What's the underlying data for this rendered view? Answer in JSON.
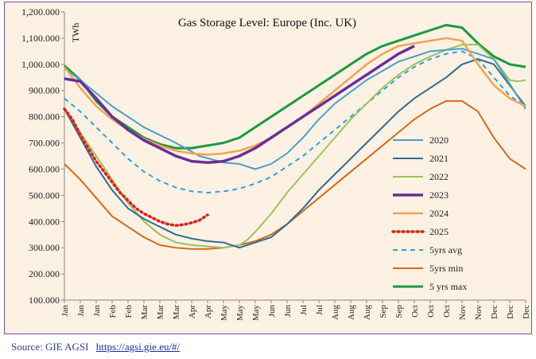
{
  "source": {
    "label": "Source: GIE AGSI",
    "link_text": "https://agsi.gie.eu/#/"
  },
  "chart_data": {
    "type": "line",
    "title": "Gas Storage Level: Europe (Inc. UK)",
    "ylabel": "TWh",
    "xlabel": "",
    "ylim": [
      100,
      1200
    ],
    "yticks": [
      "100.000",
      "200.000",
      "300.000",
      "400.000",
      "500.000",
      "600.000",
      "700.000",
      "800.000",
      "900.000",
      "1,000.000",
      "1,100.000",
      "1,200.000"
    ],
    "xticks": [
      "Jan",
      "Jan",
      "Jan",
      "Feb",
      "Feb",
      "Mar",
      "Mar",
      "Mar",
      "Apr",
      "Apr",
      "May",
      "May",
      "May",
      "Jun",
      "Jun",
      "Jul",
      "Jul",
      "Aug",
      "Aug",
      "Aug",
      "Sep",
      "Sep",
      "Oct",
      "Oct",
      "Oct",
      "Nov",
      "Nov",
      "Dec",
      "Dec",
      "Dec"
    ],
    "grid": false,
    "legend": "right",
    "series": [
      {
        "name": "2020",
        "color": "#4a9fc8",
        "dash": "",
        "width": 2,
        "x": [
          0,
          1,
          3,
          5,
          7,
          8.5,
          10,
          11,
          12,
          13,
          13.5,
          14,
          15,
          16,
          17,
          19,
          21,
          23,
          25,
          27,
          29
        ],
        "y": [
          985,
          940,
          840,
          760,
          700,
          650,
          625,
          620,
          600,
          620,
          640,
          660,
          720,
          790,
          850,
          940,
          1010,
          1050,
          1060,
          1020,
          830
        ]
      },
      {
        "name": "2021",
        "color": "#2e6b8f",
        "dash": "",
        "width": 2,
        "x": [
          0,
          1,
          2,
          3,
          4,
          5,
          6,
          7,
          8,
          9,
          10,
          11,
          11.5,
          12,
          13,
          14,
          15,
          16,
          17,
          18,
          19,
          20,
          21,
          22,
          23,
          24,
          25,
          26,
          27,
          28,
          29
        ],
        "y": [
          830,
          720,
          610,
          520,
          450,
          410,
          380,
          350,
          335,
          325,
          320,
          300,
          310,
          320,
          340,
          390,
          450,
          520,
          580,
          640,
          700,
          760,
          820,
          870,
          910,
          950,
          1000,
          1020,
          1000,
          920,
          840
        ]
      },
      {
        "name": "2022",
        "color": "#9ac25a",
        "dash": "",
        "width": 2,
        "x": [
          0,
          1,
          2,
          3,
          4,
          5,
          6,
          7,
          8,
          9,
          10,
          11,
          11.5,
          12,
          13,
          14,
          15,
          16,
          17,
          18,
          19,
          20,
          21,
          22,
          23,
          24,
          25,
          26,
          27,
          27.5,
          28,
          28.5,
          29
        ],
        "y": [
          830,
          740,
          650,
          560,
          470,
          400,
          350,
          320,
          310,
          305,
          300,
          310,
          330,
          360,
          430,
          510,
          580,
          650,
          720,
          790,
          850,
          910,
          960,
          1000,
          1030,
          1055,
          1075,
          1075,
          1020,
          980,
          940,
          935,
          940
        ]
      },
      {
        "name": "2023",
        "color": "#6a2f9a",
        "dash": "",
        "width": 3.5,
        "x": [
          0,
          1,
          2,
          3,
          4,
          5,
          6,
          7,
          8,
          9,
          10,
          11,
          12,
          13,
          14,
          15,
          16,
          17,
          18,
          19,
          20,
          21,
          22
        ],
        "y": [
          945,
          935,
          870,
          800,
          750,
          710,
          680,
          650,
          630,
          625,
          630,
          650,
          680,
          720,
          760,
          800,
          840,
          880,
          920,
          960,
          1000,
          1040,
          1070
        ]
      },
      {
        "name": "2024",
        "color": "#f4a34e",
        "dash": "",
        "width": 2.5,
        "x": [
          0,
          1,
          2,
          3,
          4,
          5,
          6,
          7,
          8,
          9,
          10,
          11,
          12,
          13,
          14,
          15,
          16,
          17,
          18,
          19,
          20,
          21,
          22,
          23,
          24,
          25,
          26,
          27,
          28,
          29
        ],
        "y": [
          990,
          910,
          840,
          790,
          750,
          715,
          690,
          670,
          660,
          655,
          660,
          670,
          690,
          720,
          760,
          800,
          850,
          900,
          950,
          1000,
          1040,
          1070,
          1080,
          1090,
          1100,
          1090,
          1000,
          920,
          870,
          840
        ]
      },
      {
        "name": "2025",
        "color": "#d8231a",
        "dash": "2,4",
        "width": 3.5,
        "x": [
          0,
          0.5,
          1,
          1.5,
          2,
          2.5,
          3,
          3.5,
          4,
          4.5,
          5,
          5.5,
          6,
          6.5,
          7,
          7.5,
          8,
          8.5,
          9
        ],
        "y": [
          830,
          790,
          730,
          680,
          630,
          590,
          550,
          510,
          480,
          450,
          430,
          415,
          400,
          390,
          385,
          388,
          395,
          405,
          425
        ]
      },
      {
        "name": "5yrs avg",
        "color": "#2f9fe0",
        "dash": "6,5",
        "width": 2,
        "x": [
          0,
          1,
          2,
          3,
          4,
          5,
          6,
          7,
          8,
          9,
          10,
          11,
          12,
          13,
          14,
          15,
          16,
          17,
          18,
          19,
          20,
          21,
          22,
          23,
          24,
          25,
          26,
          27,
          28,
          29
        ],
        "y": [
          870,
          820,
          760,
          700,
          640,
          590,
          555,
          530,
          515,
          510,
          515,
          525,
          545,
          570,
          610,
          650,
          700,
          750,
          800,
          850,
          900,
          950,
          990,
          1020,
          1040,
          1050,
          1020,
          950,
          880,
          840
        ]
      },
      {
        "name": "5yrs min",
        "color": "#d4691c",
        "dash": "",
        "width": 2,
        "x": [
          0,
          1,
          2,
          3,
          4,
          5,
          6,
          7,
          8,
          9,
          10,
          11,
          12,
          13,
          14,
          15,
          16,
          17,
          18,
          19,
          20,
          21,
          22,
          23,
          24,
          25,
          26,
          27,
          28,
          29
        ],
        "y": [
          620,
          560,
          490,
          420,
          380,
          340,
          310,
          300,
          295,
          295,
          300,
          310,
          325,
          350,
          390,
          440,
          490,
          540,
          590,
          640,
          690,
          740,
          790,
          830,
          860,
          860,
          820,
          720,
          640,
          600
        ]
      },
      {
        "name": "5 yrs max",
        "color": "#1b9a3c",
        "dash": "",
        "width": 3,
        "x": [
          0,
          1,
          2,
          3,
          4,
          5,
          6,
          7,
          8,
          9,
          10,
          11,
          12,
          13,
          14,
          15,
          16,
          17,
          18,
          19,
          20,
          21,
          22,
          23,
          24,
          25,
          26,
          27,
          28,
          29
        ],
        "y": [
          995,
          940,
          860,
          800,
          760,
          720,
          695,
          680,
          680,
          690,
          700,
          720,
          760,
          800,
          840,
          880,
          920,
          960,
          1000,
          1040,
          1070,
          1090,
          1110,
          1130,
          1150,
          1140,
          1080,
          1030,
          1000,
          990
        ]
      }
    ]
  }
}
